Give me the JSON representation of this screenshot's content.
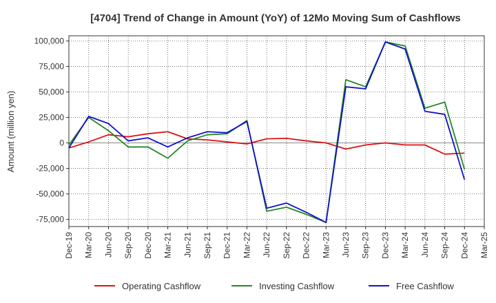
{
  "chart_data": {
    "type": "line",
    "title": "[4704]  Trend of Change in Amount (YoY) of 12Mo Moving Sum of Cashflows",
    "xlabel": "",
    "ylabel": "Amount (million yen)",
    "ylim": [
      -82000,
      105000
    ],
    "yticks": [
      100000,
      75000,
      50000,
      25000,
      0,
      -25000,
      -50000,
      -75000
    ],
    "ytick_labels": [
      "100,000",
      "75,000",
      "50,000",
      "25,000",
      "0",
      "-25,000",
      "-50,000",
      "-75,000"
    ],
    "categories": [
      "Dec-19",
      "Mar-20",
      "Jun-20",
      "Sep-20",
      "Dec-20",
      "Mar-21",
      "Jun-21",
      "Sep-21",
      "Dec-21",
      "Mar-22",
      "Jun-22",
      "Sep-22",
      "Dec-22",
      "Mar-23",
      "Jun-23",
      "Sep-23",
      "Dec-23",
      "Mar-24",
      "Jun-24",
      "Sep-24",
      "Dec-24",
      "Mar-25"
    ],
    "grid": true,
    "legend_position": "bottom",
    "series": [
      {
        "name": "Operating Cashflow",
        "color": "#dd1111",
        "values": [
          -5000,
          1000,
          8000,
          6000,
          9000,
          11000,
          4000,
          3000,
          1000,
          -1000,
          4000,
          4500,
          2000,
          0,
          -6000,
          -2000,
          0,
          -2000,
          -2000,
          -11000,
          -10000,
          null
        ]
      },
      {
        "name": "Investing Cashflow",
        "color": "#228822",
        "values": [
          -2000,
          25000,
          12000,
          -4000,
          -4000,
          -15000,
          2000,
          8000,
          9000,
          22000,
          -67000,
          -63000,
          -70000,
          -78000,
          62000,
          55000,
          99000,
          95000,
          34000,
          40000,
          -26000,
          null
        ]
      },
      {
        "name": "Free Cashflow",
        "color": "#1111cc",
        "values": [
          -5000,
          26000,
          19000,
          2000,
          5000,
          -4000,
          5000,
          11000,
          10000,
          21000,
          -64000,
          -59000,
          -68000,
          -78000,
          55000,
          53000,
          99000,
          92000,
          31000,
          28000,
          -36000,
          null
        ]
      }
    ]
  }
}
